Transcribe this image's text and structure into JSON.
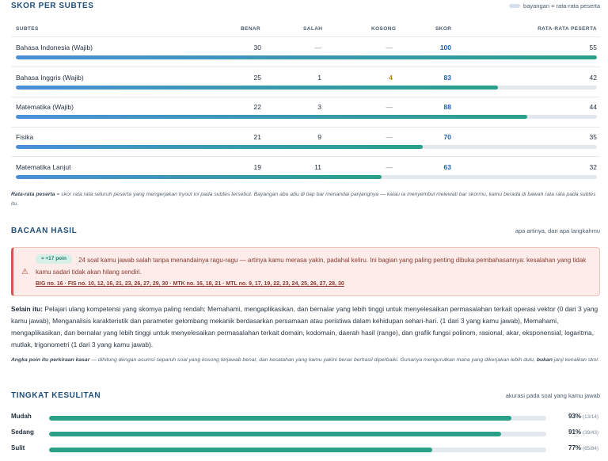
{
  "subtest_section": {
    "title": "SKOR PER SUBTES",
    "legend": "bayangan = rata-rata peserta",
    "columns": {
      "subtes": "SUBTES",
      "benar": "BENAR",
      "salah": "SALAH",
      "kosong": "KOSONG",
      "skor": "SKOR",
      "rata": "RATA-RATA PESERTA"
    },
    "rows": [
      {
        "name": "Bahasa Indonesia (Wajib)",
        "benar": "30",
        "salah": "—",
        "kosong": "—",
        "skor": "100",
        "rata": "55",
        "skor_pct": 100
      },
      {
        "name": "Bahasa Inggris (Wajib)",
        "benar": "25",
        "salah": "1",
        "kosong": "4",
        "skor": "83",
        "rata": "42",
        "skor_pct": 83
      },
      {
        "name": "Matematika (Wajib)",
        "benar": "22",
        "salah": "3",
        "kosong": "—",
        "skor": "88",
        "rata": "44",
        "skor_pct": 88
      },
      {
        "name": "Fisika",
        "benar": "21",
        "salah": "9",
        "kosong": "—",
        "skor": "70",
        "rata": "35",
        "skor_pct": 70
      },
      {
        "name": "Matematika Lanjut",
        "benar": "19",
        "salah": "11",
        "kosong": "—",
        "skor": "63",
        "rata": "32",
        "skor_pct": 63
      }
    ],
    "note_term": "Rata-rata peserta",
    "note_text": " = skor rata rata seluruh peserta yang mengerjakan tryout ini pada subtes tersebut. Bayangan abu abu di tiap bar menandai panjangnya — kalau ia menyembul melewati bar skormu, kamu berada di bawah rata rata pada subtes itu."
  },
  "reading_section": {
    "title": "BACAAN HASIL",
    "aside": "apa artinya, dan apa langkahmu",
    "alert": {
      "badge": "≈ +17 poin",
      "text": "24 soal kamu jawab salah tanpa menandainya ragu-ragu — artinya kamu merasa yakin, padahal keliru. Ini bagian yang paling penting dibuka pembahasannya: kesalahan yang tidak kamu sadari tidak akan hilang sendiri.",
      "refs": "BIG no. 16 · FIS no. 10, 12, 16, 21, 23, 26, 27, 29, 30 · MTK no. 16, 18, 21 · MTL no. 9, 17, 19, 22, 23, 24, 25, 26, 27, 28, 30"
    },
    "weak_label": "Selain itu:",
    "weak_text": " Pelajari ulang kompetensi yang skornya paling rendah: Memahami, mengaplikasikan, dan bernalar yang lebih tinggi untuk menyelesaikan permasalahan terkait operasi vektor (0 dari 3 yang kamu jawab), Menganalisis karakteristik dan parameter gelombang mekanik berdasarkan persamaan atau peristiwa dalam kehidupan sehari-hari. (1 dari 3 yang kamu jawab), Memahami, mengaplikasikan, dan bernalar yang lebih tinggi untuk menyelesaikan permasalahan terkait domain, kodomain, daerah hasil (range), dan grafik fungsi polinom, rasional, akar, eksponensial, logaritma, mutlak, trigonometri (1 dari 3 yang kamu jawab).",
    "estimate_term": "Angka poin itu perkiraan kasar",
    "estimate_text": " — dihitung dengan asumsi separuh soal yang kosong terjawab benar, dan kesalahan yang kamu yakini benar berhasil diperbaiki. Gunanya mengurutkan mana yang dikerjakan lebih dulu, ",
    "estimate_bold": "bukan",
    "estimate_tail": " janji kenaikan skor."
  },
  "difficulty_section": {
    "title": "TINGKAT KESULITAN",
    "aside": "akurasi pada soal yang kamu jawab",
    "rows": [
      {
        "label": "Mudah",
        "pct": "93%",
        "frac": "(13/14)",
        "value": 93
      },
      {
        "label": "Sedang",
        "pct": "91%",
        "frac": "(39/43)",
        "value": 91
      },
      {
        "label": "Sulit",
        "pct": "77%",
        "frac": "(65/84)",
        "value": 77
      }
    ]
  },
  "colors": {
    "accent_blue": "#4a90d9",
    "accent_teal": "#2aa08a",
    "alert_red": "#d9534f"
  }
}
